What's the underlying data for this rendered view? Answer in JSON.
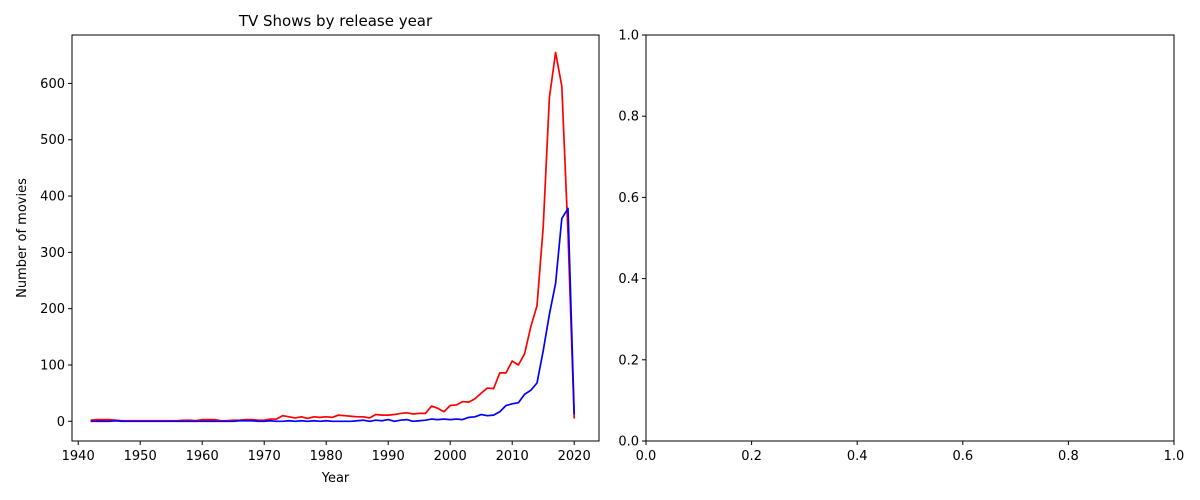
{
  "chart_data": [
    {
      "type": "line",
      "title": "TV Shows by release year",
      "xlabel": "Year",
      "ylabel": "Number of movies",
      "xlim": [
        1939,
        2024
      ],
      "ylim": [
        -35,
        686
      ],
      "xticks": [
        1940,
        1950,
        1960,
        1970,
        1980,
        1990,
        2000,
        2010,
        2020
      ],
      "yticks": [
        0,
        100,
        200,
        300,
        400,
        500,
        600
      ],
      "grid": false,
      "series": [
        {
          "color": "#ff0000",
          "x": [
            1942,
            1943,
            1944,
            1945,
            1946,
            1947,
            1948,
            1949,
            1950,
            1951,
            1952,
            1953,
            1954,
            1955,
            1956,
            1957,
            1958,
            1959,
            1960,
            1961,
            1962,
            1963,
            1964,
            1965,
            1966,
            1967,
            1968,
            1969,
            1970,
            1971,
            1972,
            1973,
            1974,
            1975,
            1976,
            1977,
            1978,
            1979,
            1980,
            1981,
            1982,
            1983,
            1984,
            1985,
            1986,
            1987,
            1988,
            1989,
            1990,
            1991,
            1992,
            1993,
            1994,
            1995,
            1996,
            1997,
            1998,
            1999,
            2000,
            2001,
            2002,
            2003,
            2004,
            2005,
            2006,
            2007,
            2008,
            2009,
            2010,
            2011,
            2012,
            2013,
            2014,
            2015,
            2016,
            2017,
            2018,
            2019,
            2020
          ],
          "y": [
            2,
            3,
            3,
            3,
            2,
            1,
            1,
            1,
            1,
            1,
            1,
            1,
            1,
            1,
            1,
            2,
            2,
            1,
            3,
            3,
            3,
            1,
            1,
            2,
            2,
            3,
            3,
            2,
            2,
            4,
            4,
            10,
            8,
            6,
            8,
            5,
            8,
            7,
            8,
            7,
            11,
            10,
            9,
            8,
            8,
            6,
            12,
            11,
            11,
            12,
            14,
            15,
            13,
            14,
            14,
            27,
            23,
            17,
            28,
            29,
            35,
            34,
            40,
            50,
            59,
            58,
            86,
            86,
            107,
            100,
            120,
            168,
            205,
            345,
            575,
            655,
            595,
            333,
            5
          ]
        },
        {
          "color": "#0000ff",
          "x": [
            1942,
            1943,
            1944,
            1945,
            1946,
            1947,
            1948,
            1949,
            1950,
            1951,
            1952,
            1953,
            1954,
            1955,
            1956,
            1957,
            1958,
            1959,
            1960,
            1961,
            1962,
            1963,
            1964,
            1965,
            1966,
            1967,
            1968,
            1969,
            1970,
            1971,
            1972,
            1973,
            1974,
            1975,
            1976,
            1977,
            1978,
            1979,
            1980,
            1981,
            1982,
            1983,
            1984,
            1985,
            1986,
            1987,
            1988,
            1989,
            1990,
            1991,
            1992,
            1993,
            1994,
            1995,
            1996,
            1997,
            1998,
            1999,
            2000,
            2001,
            2002,
            2003,
            2004,
            2005,
            2006,
            2007,
            2008,
            2009,
            2010,
            2011,
            2012,
            2013,
            2014,
            2015,
            2016,
            2017,
            2018,
            2019,
            2020
          ],
          "y": [
            0,
            0,
            0,
            0,
            1,
            0,
            0,
            0,
            0,
            0,
            0,
            0,
            0,
            0,
            0,
            0,
            0,
            0,
            0,
            0,
            0,
            0,
            0,
            0,
            1,
            1,
            1,
            0,
            0,
            1,
            0,
            0,
            1,
            0,
            1,
            0,
            1,
            0,
            1,
            0,
            0,
            0,
            0,
            1,
            2,
            0,
            2,
            1,
            3,
            0,
            2,
            3,
            0,
            1,
            2,
            4,
            3,
            4,
            3,
            4,
            3,
            7,
            8,
            12,
            10,
            11,
            17,
            28,
            31,
            33,
            48,
            55,
            68,
            125,
            190,
            245,
            360,
            378,
            12
          ]
        }
      ]
    },
    {
      "type": "line",
      "title": "",
      "xlabel": "",
      "ylabel": "",
      "xlim": [
        0,
        1
      ],
      "ylim": [
        0,
        1
      ],
      "xticks": [
        0.0,
        0.2,
        0.4,
        0.6,
        0.8,
        1.0
      ],
      "yticks": [
        0.0,
        0.2,
        0.4,
        0.6,
        0.8,
        1.0
      ],
      "xtick_labels": [
        "0.0",
        "0.2",
        "0.4",
        "0.6",
        "0.8",
        "1.0"
      ],
      "ytick_labels": [
        "0.0",
        "0.2",
        "0.4",
        "0.6",
        "0.8",
        "1.0"
      ],
      "grid": false,
      "series": []
    }
  ]
}
